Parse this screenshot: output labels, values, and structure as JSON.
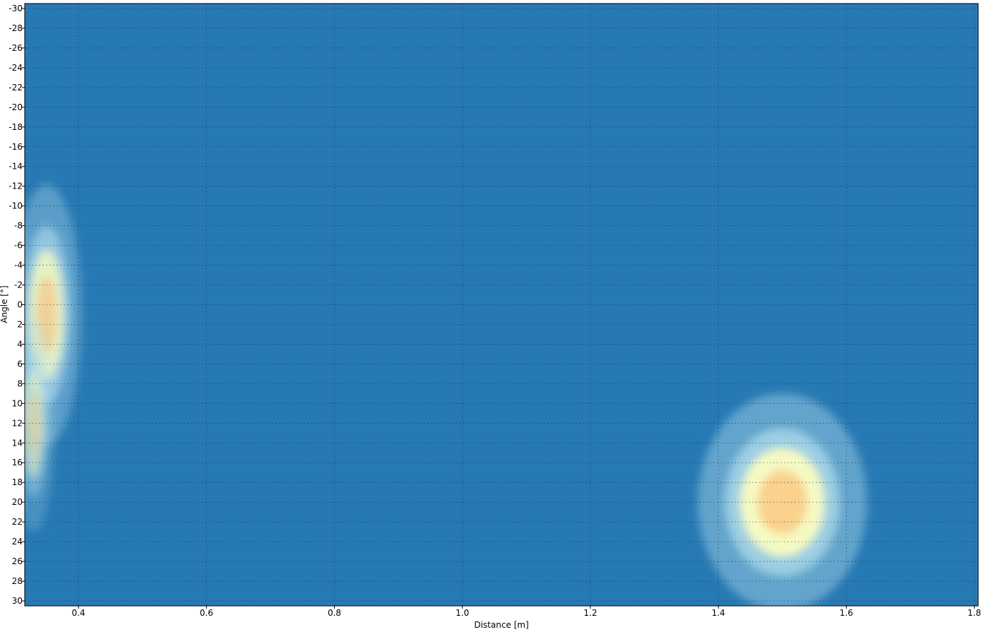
{
  "chart_data": {
    "type": "heatmap",
    "title": "",
    "xlabel": "Distance [m]",
    "ylabel": "Angle [°]",
    "xlim": [
      0.316,
      1.806
    ],
    "ylim": [
      -30.5,
      30.5
    ],
    "y_inverted": true,
    "x_ticks": [
      "0.4",
      "0.6",
      "0.8",
      "1.0",
      "1.2",
      "1.4",
      "1.6",
      "1.8"
    ],
    "y_ticks": [
      "-30",
      "-28",
      "-26",
      "-24",
      "-22",
      "-20",
      "-18",
      "-16",
      "-14",
      "-12",
      "-10",
      "-8",
      "-6",
      "-4",
      "-2",
      "0",
      "2",
      "4",
      "6",
      "8",
      "10",
      "12",
      "14",
      "16",
      "18",
      "20",
      "22",
      "24",
      "26",
      "28",
      "30"
    ],
    "grid": true,
    "colormap": [
      "#2c7bb6",
      "#abd9e9",
      "#ffffbf",
      "#fdae61"
    ],
    "background_color": "#2779b4",
    "hotspots": [
      {
        "distance": 0.35,
        "angle": 1,
        "distance_spread": 0.025,
        "angle_spread": 6,
        "intensity": 0.85
      },
      {
        "distance": 0.33,
        "angle": 12,
        "distance_spread": 0.015,
        "angle_spread": 5,
        "intensity": 0.55
      },
      {
        "distance": 1.5,
        "angle": 20,
        "distance_spread": 0.06,
        "angle_spread": 5,
        "intensity": 1.0
      }
    ]
  }
}
